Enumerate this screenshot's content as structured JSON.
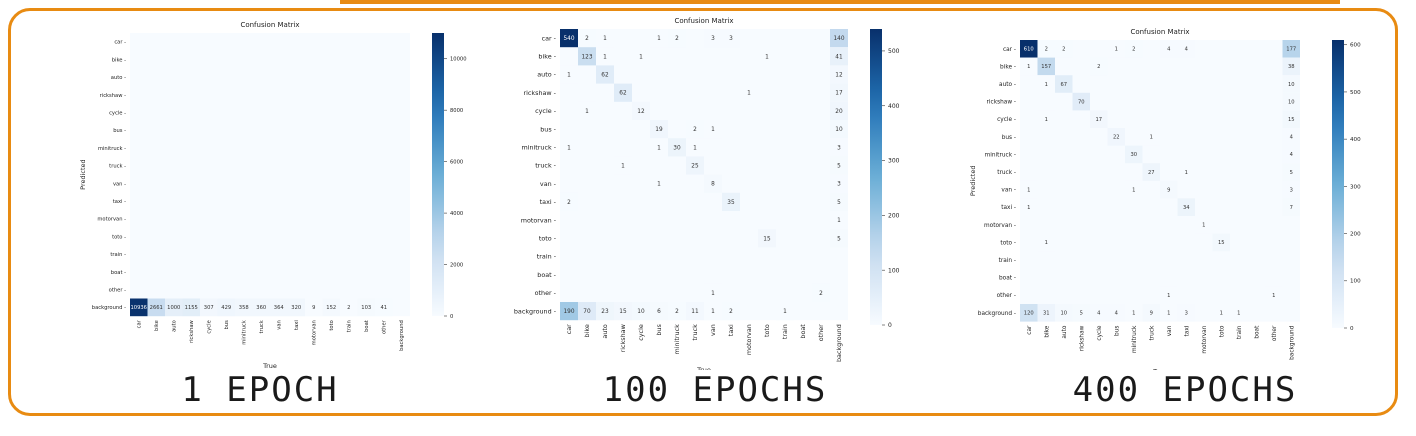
{
  "panels": [
    {
      "caption": "1 EPOCH",
      "chart_data": {
        "type": "heatmap",
        "title": "Confusion Matrix",
        "xlabel": "True",
        "ylabel": "Predicted",
        "labels": [
          "car",
          "bike",
          "auto",
          "rickshaw",
          "cycle",
          "bus",
          "minitruck",
          "truck",
          "van",
          "taxi",
          "motorvan",
          "toto",
          "train",
          "boat",
          "other",
          "background"
        ],
        "colorbar_ticks": [
          0,
          2000,
          4000,
          6000,
          8000,
          10000
        ],
        "vmax": 11000,
        "cells": [
          {
            "row": 15,
            "col": 0,
            "value": 10936
          },
          {
            "row": 15,
            "col": 1,
            "value": 2661
          },
          {
            "row": 15,
            "col": 2,
            "value": 1000
          },
          {
            "row": 15,
            "col": 3,
            "value": 1155
          },
          {
            "row": 15,
            "col": 4,
            "value": 307
          },
          {
            "row": 15,
            "col": 5,
            "value": 429
          },
          {
            "row": 15,
            "col": 6,
            "value": 358
          },
          {
            "row": 15,
            "col": 7,
            "value": 360
          },
          {
            "row": 15,
            "col": 8,
            "value": 364
          },
          {
            "row": 15,
            "col": 9,
            "value": 320
          },
          {
            "row": 15,
            "col": 10,
            "value": 9
          },
          {
            "row": 15,
            "col": 11,
            "value": 152
          },
          {
            "row": 15,
            "col": 12,
            "value": 2
          },
          {
            "row": 15,
            "col": 13,
            "value": 103
          },
          {
            "row": 15,
            "col": 14,
            "value": 41
          }
        ]
      }
    },
    {
      "caption": "100 EPOCHS",
      "chart_data": {
        "type": "heatmap",
        "title": "Confusion Matrix",
        "xlabel": "True",
        "ylabel": "",
        "labels": [
          "car",
          "bike",
          "auto",
          "rickshaw",
          "cycle",
          "bus",
          "minitruck",
          "truck",
          "van",
          "taxi",
          "motorvan",
          "toto",
          "train",
          "boat",
          "other",
          "background"
        ],
        "colorbar_ticks": [
          0,
          100,
          200,
          300,
          400,
          500
        ],
        "vmax": 540,
        "cells": [
          {
            "row": 0,
            "col": 0,
            "value": 540
          },
          {
            "row": 0,
            "col": 1,
            "value": 2
          },
          {
            "row": 0,
            "col": 2,
            "value": 1
          },
          {
            "row": 0,
            "col": 5,
            "value": 1
          },
          {
            "row": 0,
            "col": 6,
            "value": 2
          },
          {
            "row": 0,
            "col": 8,
            "value": 3
          },
          {
            "row": 0,
            "col": 9,
            "value": 3
          },
          {
            "row": 0,
            "col": 15,
            "value": 140
          },
          {
            "row": 1,
            "col": 1,
            "value": 123
          },
          {
            "row": 1,
            "col": 2,
            "value": 1
          },
          {
            "row": 1,
            "col": 4,
            "value": 1
          },
          {
            "row": 1,
            "col": 11,
            "value": 1
          },
          {
            "row": 1,
            "col": 15,
            "value": 41
          },
          {
            "row": 2,
            "col": 0,
            "value": 1
          },
          {
            "row": 2,
            "col": 2,
            "value": 62
          },
          {
            "row": 2,
            "col": 15,
            "value": 12
          },
          {
            "row": 3,
            "col": 3,
            "value": 62
          },
          {
            "row": 3,
            "col": 10,
            "value": 1
          },
          {
            "row": 3,
            "col": 15,
            "value": 17
          },
          {
            "row": 4,
            "col": 1,
            "value": 1
          },
          {
            "row": 4,
            "col": 4,
            "value": 12
          },
          {
            "row": 4,
            "col": 15,
            "value": 20
          },
          {
            "row": 5,
            "col": 5,
            "value": 19
          },
          {
            "row": 5,
            "col": 7,
            "value": 2
          },
          {
            "row": 5,
            "col": 8,
            "value": 1
          },
          {
            "row": 5,
            "col": 15,
            "value": 10
          },
          {
            "row": 6,
            "col": 0,
            "value": 1
          },
          {
            "row": 6,
            "col": 5,
            "value": 1
          },
          {
            "row": 6,
            "col": 6,
            "value": 30
          },
          {
            "row": 6,
            "col": 7,
            "value": 1
          },
          {
            "row": 6,
            "col": 15,
            "value": 3
          },
          {
            "row": 7,
            "col": 3,
            "value": 1
          },
          {
            "row": 7,
            "col": 7,
            "value": 25
          },
          {
            "row": 7,
            "col": 15,
            "value": 5
          },
          {
            "row": 8,
            "col": 5,
            "value": 1
          },
          {
            "row": 8,
            "col": 8,
            "value": 8
          },
          {
            "row": 8,
            "col": 15,
            "value": 3
          },
          {
            "row": 9,
            "col": 0,
            "value": 2
          },
          {
            "row": 9,
            "col": 9,
            "value": 35
          },
          {
            "row": 9,
            "col": 15,
            "value": 5
          },
          {
            "row": 10,
            "col": 15,
            "value": 1
          },
          {
            "row": 11,
            "col": 11,
            "value": 15
          },
          {
            "row": 11,
            "col": 15,
            "value": 5
          },
          {
            "row": 14,
            "col": 8,
            "value": 1
          },
          {
            "row": 14,
            "col": 14,
            "value": 2
          },
          {
            "row": 15,
            "col": 0,
            "value": 190
          },
          {
            "row": 15,
            "col": 1,
            "value": 70
          },
          {
            "row": 15,
            "col": 2,
            "value": 23
          },
          {
            "row": 15,
            "col": 3,
            "value": 15
          },
          {
            "row": 15,
            "col": 4,
            "value": 10
          },
          {
            "row": 15,
            "col": 5,
            "value": 6
          },
          {
            "row": 15,
            "col": 6,
            "value": 2
          },
          {
            "row": 15,
            "col": 7,
            "value": 11
          },
          {
            "row": 15,
            "col": 8,
            "value": 1
          },
          {
            "row": 15,
            "col": 9,
            "value": 2
          },
          {
            "row": 15,
            "col": 12,
            "value": 1
          }
        ]
      }
    },
    {
      "caption": "400 EPOCHS",
      "chart_data": {
        "type": "heatmap",
        "title": "Confusion Matrix",
        "xlabel": "True",
        "ylabel": "Predicted",
        "labels": [
          "car",
          "bike",
          "auto",
          "rickshaw",
          "cycle",
          "bus",
          "minitruck",
          "truck",
          "van",
          "taxi",
          "motorvan",
          "toto",
          "train",
          "boat",
          "other",
          "background"
        ],
        "colorbar_ticks": [
          0,
          100,
          200,
          300,
          400,
          500,
          600
        ],
        "vmax": 610,
        "cells": [
          {
            "row": 0,
            "col": 0,
            "value": 610
          },
          {
            "row": 0,
            "col": 1,
            "value": 2
          },
          {
            "row": 0,
            "col": 2,
            "value": 2
          },
          {
            "row": 0,
            "col": 5,
            "value": 1
          },
          {
            "row": 0,
            "col": 6,
            "value": 2
          },
          {
            "row": 0,
            "col": 8,
            "value": 4
          },
          {
            "row": 0,
            "col": 9,
            "value": 4
          },
          {
            "row": 0,
            "col": 15,
            "value": 177
          },
          {
            "row": 1,
            "col": 0,
            "value": 1
          },
          {
            "row": 1,
            "col": 1,
            "value": 157
          },
          {
            "row": 1,
            "col": 4,
            "value": 2
          },
          {
            "row": 1,
            "col": 15,
            "value": 38
          },
          {
            "row": 2,
            "col": 1,
            "value": 1
          },
          {
            "row": 2,
            "col": 2,
            "value": 67
          },
          {
            "row": 2,
            "col": 15,
            "value": 10
          },
          {
            "row": 3,
            "col": 3,
            "value": 70
          },
          {
            "row": 3,
            "col": 15,
            "value": 10
          },
          {
            "row": 4,
            "col": 1,
            "value": 1
          },
          {
            "row": 4,
            "col": 4,
            "value": 17
          },
          {
            "row": 4,
            "col": 15,
            "value": 15
          },
          {
            "row": 5,
            "col": 5,
            "value": 22
          },
          {
            "row": 5,
            "col": 7,
            "value": 1
          },
          {
            "row": 5,
            "col": 15,
            "value": 4
          },
          {
            "row": 6,
            "col": 6,
            "value": 30
          },
          {
            "row": 6,
            "col": 15,
            "value": 4
          },
          {
            "row": 7,
            "col": 7,
            "value": 27
          },
          {
            "row": 7,
            "col": 9,
            "value": 1
          },
          {
            "row": 7,
            "col": 15,
            "value": 5
          },
          {
            "row": 8,
            "col": 0,
            "value": 1
          },
          {
            "row": 8,
            "col": 6,
            "value": 1
          },
          {
            "row": 8,
            "col": 8,
            "value": 9
          },
          {
            "row": 8,
            "col": 15,
            "value": 3
          },
          {
            "row": 9,
            "col": 0,
            "value": 1
          },
          {
            "row": 9,
            "col": 9,
            "value": 34
          },
          {
            "row": 9,
            "col": 15,
            "value": 7
          },
          {
            "row": 10,
            "col": 10,
            "value": 1
          },
          {
            "row": 11,
            "col": 1,
            "value": 1
          },
          {
            "row": 11,
            "col": 11,
            "value": 15
          },
          {
            "row": 14,
            "col": 8,
            "value": 1
          },
          {
            "row": 14,
            "col": 14,
            "value": 1
          },
          {
            "row": 15,
            "col": 0,
            "value": 120
          },
          {
            "row": 15,
            "col": 1,
            "value": 31
          },
          {
            "row": 15,
            "col": 2,
            "value": 10
          },
          {
            "row": 15,
            "col": 3,
            "value": 5
          },
          {
            "row": 15,
            "col": 4,
            "value": 4
          },
          {
            "row": 15,
            "col": 5,
            "value": 4
          },
          {
            "row": 15,
            "col": 6,
            "value": 1
          },
          {
            "row": 15,
            "col": 7,
            "value": 9
          },
          {
            "row": 15,
            "col": 8,
            "value": 1
          },
          {
            "row": 15,
            "col": 9,
            "value": 3
          },
          {
            "row": 15,
            "col": 11,
            "value": 1
          },
          {
            "row": 15,
            "col": 12,
            "value": 1
          }
        ]
      }
    }
  ]
}
